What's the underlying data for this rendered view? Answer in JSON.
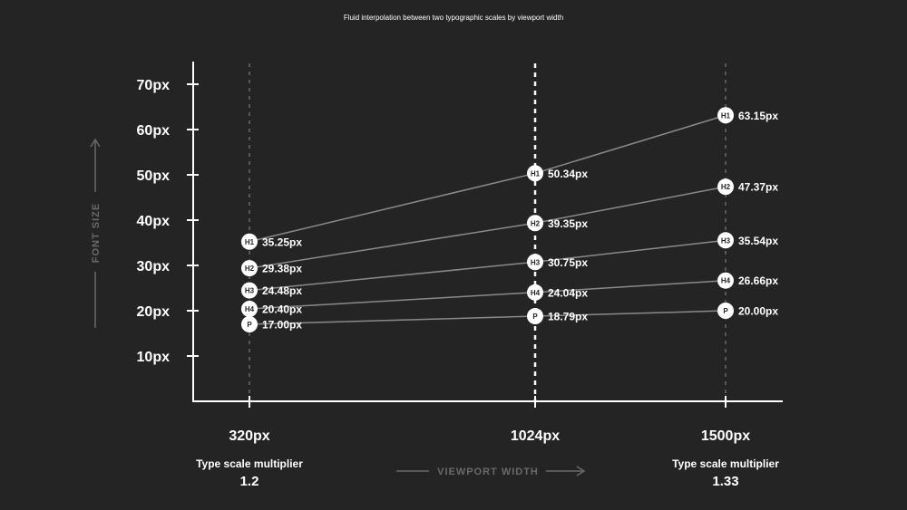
{
  "chart_data": {
    "type": "line",
    "title": "Fluid interpolation between two typographic scales by viewport width",
    "xlabel": "VIEWPORT WIDTH",
    "ylabel": "FONT SIZE",
    "x": [
      320,
      1024,
      1500
    ],
    "x_tick_labels": [
      "320px",
      "1024px",
      "1500px"
    ],
    "y_ticks": [
      10,
      20,
      30,
      40,
      50,
      60,
      70
    ],
    "y_tick_labels": [
      "10px",
      "20px",
      "30px",
      "40px",
      "50px",
      "60px",
      "70px"
    ],
    "ylim": [
      0,
      75
    ],
    "xlim": [
      220,
      1610
    ],
    "series": [
      {
        "name": "H1",
        "values": [
          35.25,
          50.34,
          63.15
        ],
        "labels": [
          "35.25px",
          "50.34px",
          "63.15px"
        ]
      },
      {
        "name": "H2",
        "values": [
          29.38,
          39.35,
          47.37
        ],
        "labels": [
          "29.38px",
          "39.35px",
          "47.37px"
        ]
      },
      {
        "name": "H3",
        "values": [
          24.48,
          30.75,
          35.54
        ],
        "labels": [
          "24.48px",
          "30.75px",
          "35.54px"
        ]
      },
      {
        "name": "H4",
        "values": [
          20.4,
          24.04,
          26.66
        ],
        "labels": [
          "20.40px",
          "24.04px",
          "26.66px"
        ]
      },
      {
        "name": "P",
        "values": [
          17.0,
          18.79,
          20.0
        ],
        "labels": [
          "17.00px",
          "18.79px",
          "20.00px"
        ]
      }
    ],
    "annotations": {
      "left": {
        "label": "Type scale multiplier",
        "value": "1.2"
      },
      "right": {
        "label": "Type scale multiplier",
        "value": "1.33"
      }
    },
    "colors": {
      "background": "#242424",
      "axis": "#ffffff",
      "series_line": "#8a8a8a",
      "badge": "#ffffff",
      "muted": "#6a6a6a"
    }
  }
}
